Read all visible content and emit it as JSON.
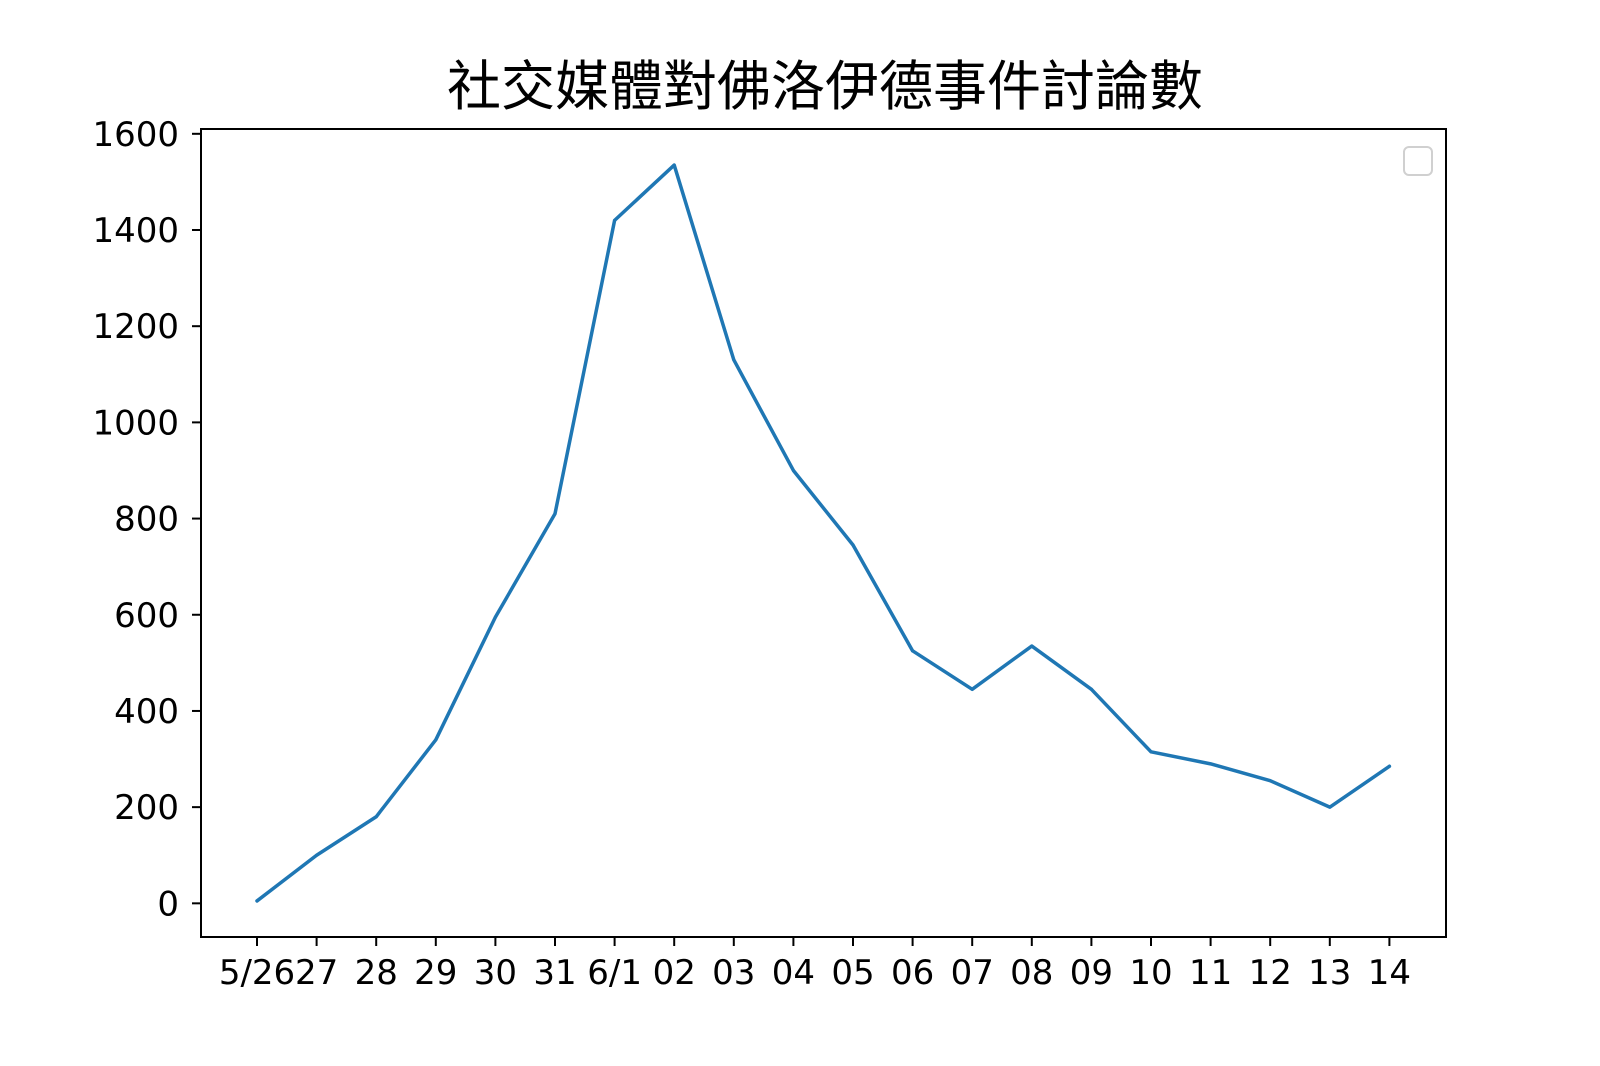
{
  "chart_data": {
    "type": "line",
    "title": "社交媒體對佛洛伊德事件討論數",
    "xlabel": "",
    "ylabel": "",
    "categories": [
      "5/26",
      "27",
      "28",
      "29",
      "30",
      "31",
      "6/1",
      "02",
      "03",
      "04",
      "05",
      "06",
      "07",
      "08",
      "09",
      "10",
      "11",
      "12",
      "13",
      "14"
    ],
    "series": [
      {
        "values": [
          5,
          100,
          180,
          340,
          595,
          810,
          1420,
          1535,
          1130,
          900,
          745,
          525,
          445,
          535,
          445,
          315,
          290,
          255,
          200,
          285
        ]
      }
    ],
    "yticks": [
      0,
      200,
      400,
      600,
      800,
      1000,
      1200,
      1400,
      1600
    ],
    "ylim": [
      -70,
      1610
    ],
    "grid": false,
    "legend": "top-right",
    "colors": {
      "line": "#1f77b4",
      "axes": "#000000",
      "legend_border": "#d0d0d0"
    }
  }
}
